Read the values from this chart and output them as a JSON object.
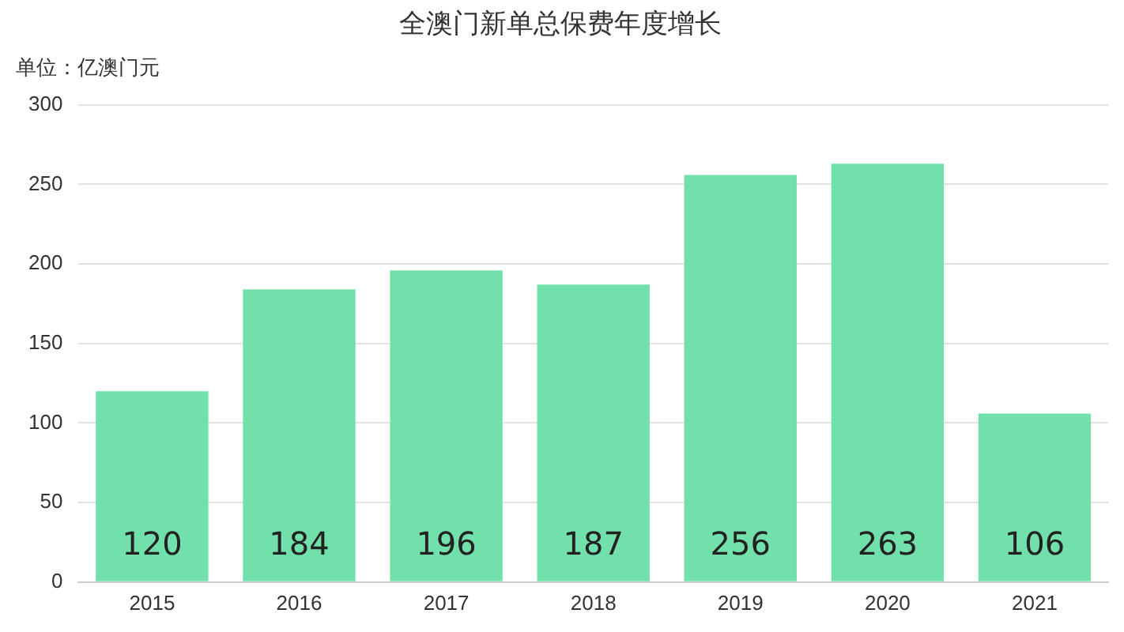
{
  "chart_data": {
    "type": "bar",
    "title": "全澳门新单总保费年度增长",
    "annotations": [
      "单位：亿澳门元"
    ],
    "categories": [
      "2015",
      "2016",
      "2017",
      "2018",
      "2019",
      "2020",
      "2021"
    ],
    "values": [
      120,
      184,
      196,
      187,
      256,
      263,
      106
    ],
    "color": "#72e0ab",
    "ylim": [
      0,
      300
    ],
    "yticks": [
      0,
      50,
      100,
      150,
      200,
      250,
      300
    ],
    "grid": "y",
    "data_labels": true
  }
}
